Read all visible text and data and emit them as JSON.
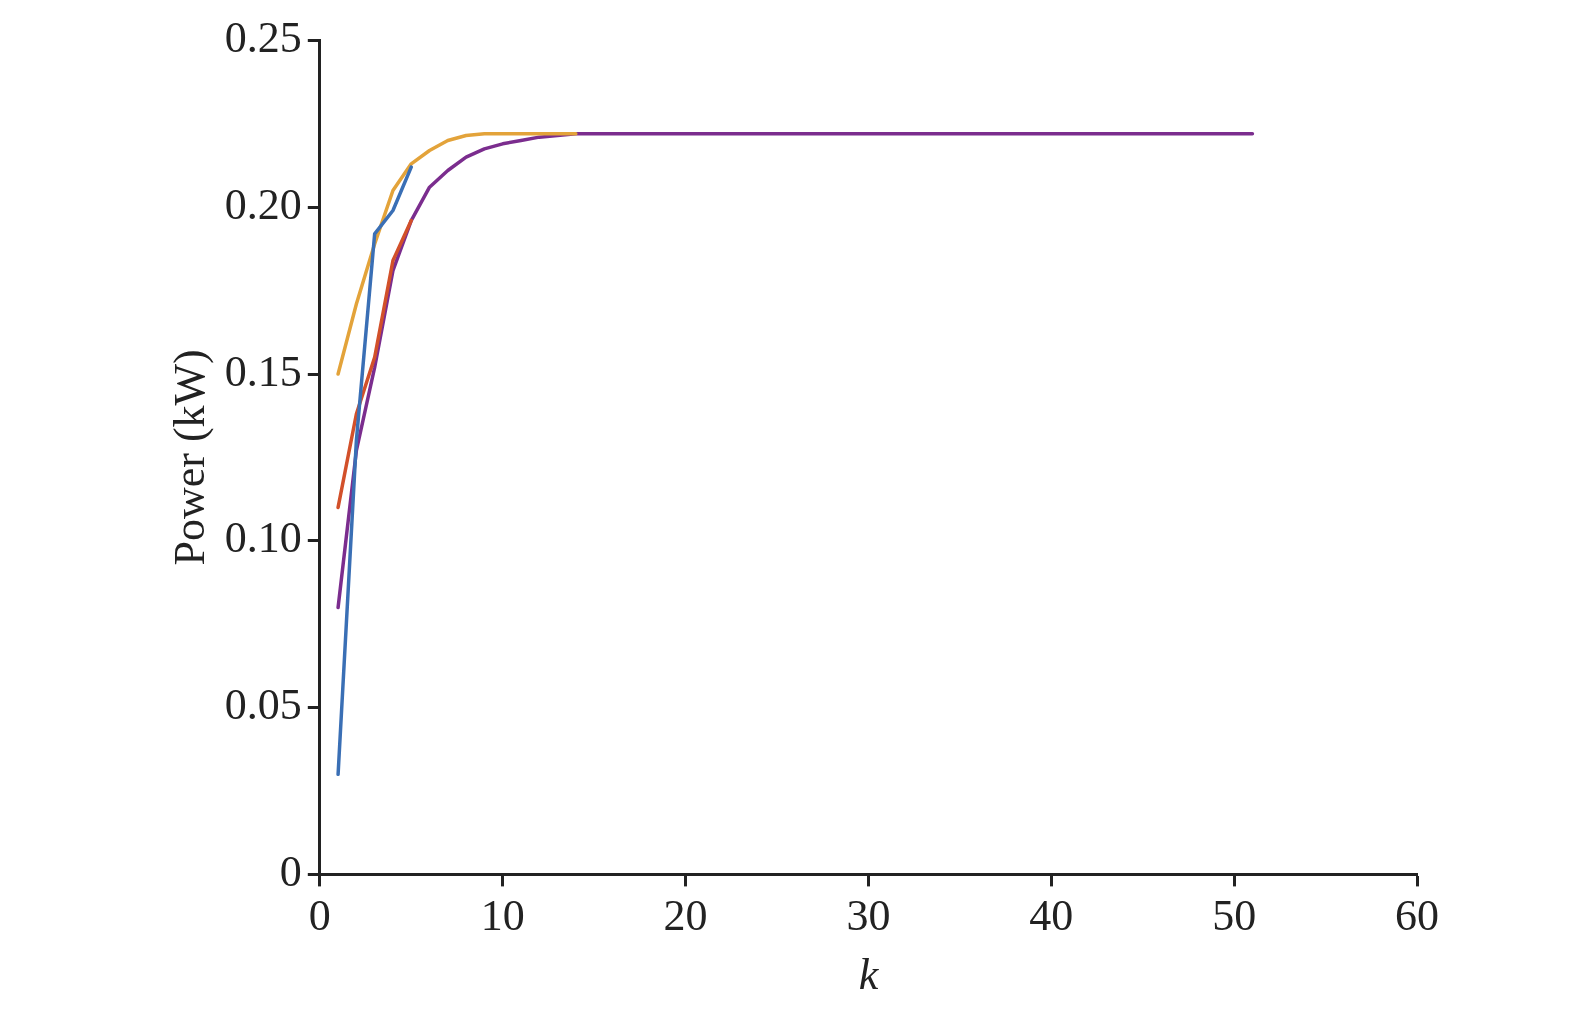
{
  "chart_data": {
    "type": "line",
    "xlabel": "k",
    "ylabel": "Power (kW)",
    "x": [
      1,
      2,
      3,
      4,
      5,
      6,
      7,
      8,
      9,
      10,
      11,
      12,
      13,
      14,
      15,
      20,
      51
    ],
    "xlim": [
      0,
      60
    ],
    "xticks": [
      0,
      10,
      20,
      30,
      40,
      50,
      60
    ],
    "ylim": [
      0,
      0.25
    ],
    "yticks": [
      0,
      0.05,
      {
        "value": 0.1,
        "label": "0.10"
      },
      0.15,
      {
        "value": 0.2,
        "label": "0.20"
      },
      0.25
    ],
    "legend": false,
    "marker": "none",
    "line_style": "solid",
    "series": [
      {
        "color": "#3a6fb5",
        "values": [
          0.03,
          0.13,
          0.192,
          0.199,
          0.212,
          null,
          null,
          null,
          null,
          null,
          null,
          null,
          null,
          null,
          null,
          null,
          null
        ]
      },
      {
        "color": "#e3a33a",
        "values": [
          0.15,
          0.171,
          0.189,
          0.205,
          0.213,
          0.217,
          0.22,
          0.2215,
          0.222,
          0.222,
          0.222,
          0.222,
          0.222,
          0.222,
          null,
          null,
          null
        ]
      },
      {
        "color": "#d2502a",
        "values": [
          0.11,
          0.138,
          0.155,
          0.184,
          0.196,
          null,
          null,
          null,
          null,
          null,
          null,
          null,
          null,
          null,
          null,
          null,
          null
        ]
      },
      {
        "color": "#7b2d8e",
        "values": [
          0.08,
          0.127,
          0.152,
          0.181,
          0.196,
          0.206,
          0.211,
          0.215,
          0.2175,
          0.219,
          0.22,
          0.221,
          0.2215,
          0.222,
          0.222,
          0.222,
          0.222
        ]
      }
    ]
  }
}
